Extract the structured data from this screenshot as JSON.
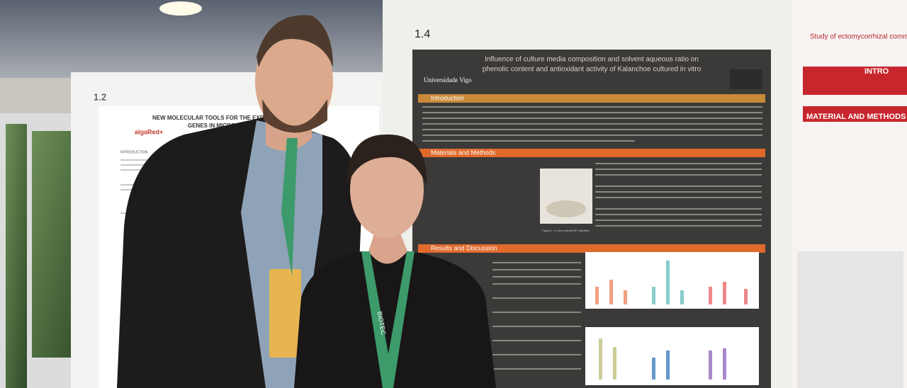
{
  "posters": [
    {
      "number": "1.2",
      "title_lines": [
        "NEW MOLECULAR TOOLS FOR THE EXPR",
        "GENES IN MICROALGA"
      ],
      "logo": "algaRed+",
      "section": "INTRODUCTION"
    },
    {
      "number": "1.4",
      "title_lines": [
        "Influence of culture media composition and solvent aqueous ratio on",
        "phenolic content and antioxidant activity of Kalanchoe cultured in vitro"
      ],
      "logo": "Universidade Vigo",
      "sections": [
        "Introduction",
        "Materials and Methods",
        "Results and Discussion"
      ],
      "figure_caption": "Figure 1. In vitro cultured BT plantlets."
    },
    {
      "title": "Study of ectomycorrhizal communities in",
      "sections": [
        "INTRO",
        "MATERIAL AND METHODS"
      ]
    }
  ],
  "lanyard_text": "BIOTEC"
}
